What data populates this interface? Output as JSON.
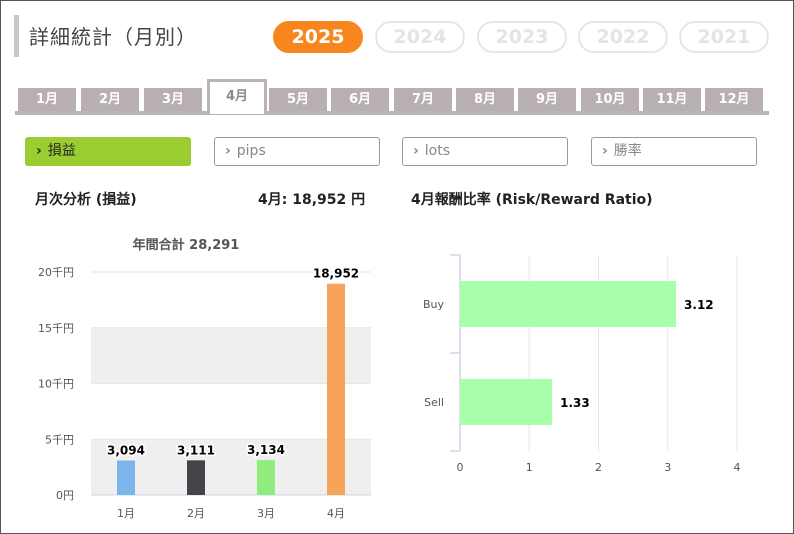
{
  "page": {
    "title": "詳細統計（月別）"
  },
  "years": [
    {
      "label": "2025",
      "active": true
    },
    {
      "label": "2024",
      "active": false
    },
    {
      "label": "2023",
      "active": false
    },
    {
      "label": "2022",
      "active": false
    },
    {
      "label": "2021",
      "active": false
    }
  ],
  "months": [
    {
      "label": "1月"
    },
    {
      "label": "2月"
    },
    {
      "label": "3月"
    },
    {
      "label": "4月",
      "active": true
    },
    {
      "label": "5月"
    },
    {
      "label": "6月"
    },
    {
      "label": "7月"
    },
    {
      "label": "8月"
    },
    {
      "label": "9月"
    },
    {
      "label": "10月"
    },
    {
      "label": "11月"
    },
    {
      "label": "12月"
    }
  ],
  "metrics": [
    {
      "label": "損益",
      "active": true
    },
    {
      "label": "pips"
    },
    {
      "label": "lots"
    },
    {
      "label": "勝率"
    }
  ],
  "left_panel": {
    "title": "月次分析 (損益)",
    "month_summary_label": "4月: ",
    "month_summary_value": "18,952",
    "month_summary_unit": " 円",
    "annual_total_label": "年間合計",
    "annual_total_value": "28,291"
  },
  "right_panel": {
    "title": "4月報酬比率 (Risk/Reward Ratio)"
  },
  "colors": {
    "accent_orange": "#f7861e",
    "active_green": "#9acd32",
    "bar_blue": "#7cb5ec",
    "bar_dark": "#434348",
    "bar_green": "#90ed7d",
    "bar_orange": "#f7a35c",
    "hbar_green": "#aaffaa"
  },
  "chart_data": [
    {
      "type": "bar",
      "title": "年間合計 28,291",
      "categories": [
        "1月",
        "2月",
        "3月",
        "4月"
      ],
      "values": [
        3094,
        3111,
        3134,
        18952
      ],
      "data_labels": [
        "3,094",
        "3,111",
        "3,134",
        "18,952"
      ],
      "bar_colors": [
        "#7cb5ec",
        "#434348",
        "#90ed7d",
        "#f7a35c"
      ],
      "ylim": [
        0,
        20000
      ],
      "yticks": [
        0,
        5000,
        10000,
        15000,
        20000
      ],
      "ytick_labels": [
        "0円",
        "5千円",
        "10千円",
        "15千円",
        "20千円"
      ],
      "grid": "alternating bands"
    },
    {
      "type": "bar",
      "orientation": "horizontal",
      "title": "4月報酬比率 (Risk/Reward Ratio)",
      "categories": [
        "Buy",
        "Sell"
      ],
      "values": [
        3.12,
        1.33
      ],
      "data_labels": [
        "3.12",
        "1.33"
      ],
      "xlim": [
        0,
        4
      ],
      "xticks": [
        "0",
        "1",
        "2",
        "3",
        "4"
      ],
      "grid": true
    }
  ]
}
